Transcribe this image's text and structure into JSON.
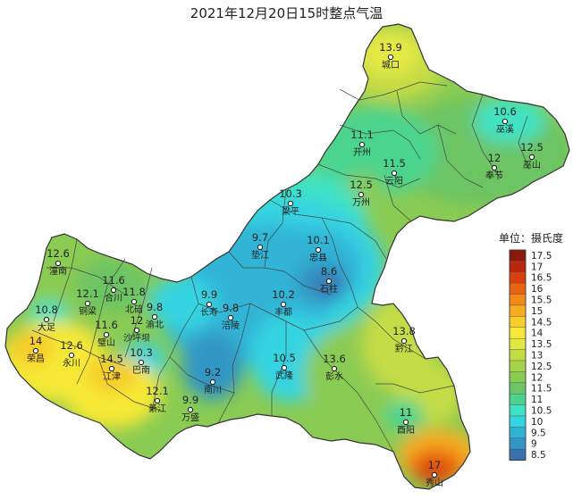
{
  "map": {
    "title": "2021年12月20日15时整点气温",
    "legend": {
      "title": "单位：摄氏度",
      "items": [
        {
          "label": "17.5",
          "color": "#8b1a0e"
        },
        {
          "label": "17",
          "color": "#b8260e"
        },
        {
          "label": "16.5",
          "color": "#d8410f"
        },
        {
          "label": "16",
          "color": "#ea6410"
        },
        {
          "label": "15.5",
          "color": "#f28a18"
        },
        {
          "label": "15",
          "color": "#f6ad22"
        },
        {
          "label": "14.5",
          "color": "#f7cc2c"
        },
        {
          "label": "14",
          "color": "#f6e836"
        },
        {
          "label": "13.5",
          "color": "#e4e844"
        },
        {
          "label": "13",
          "color": "#c4dc44"
        },
        {
          "label": "12.5",
          "color": "#a6d24c"
        },
        {
          "label": "12",
          "color": "#8acb53"
        },
        {
          "label": "11.5",
          "color": "#6cc464"
        },
        {
          "label": "11",
          "color": "#4cd48e"
        },
        {
          "label": "10.5",
          "color": "#3fe2c2"
        },
        {
          "label": "10",
          "color": "#34d4e2"
        },
        {
          "label": "9.5",
          "color": "#30b4d6"
        },
        {
          "label": "9",
          "color": "#3296c4"
        },
        {
          "label": "8.5",
          "color": "#3a6fb0"
        }
      ]
    },
    "stations": [
      {
        "name": "城口",
        "value": "13.9",
        "color": "#e4e844"
      },
      {
        "name": "巫溪",
        "value": "10.6",
        "color": "#3fe2c2"
      },
      {
        "name": "开州",
        "value": "11.1",
        "color": "#4cd48e"
      },
      {
        "name": "云阳",
        "value": "11.5",
        "color": "#6cc464"
      },
      {
        "name": "奉节",
        "value": "12",
        "color": "#8acb53"
      },
      {
        "name": "巫山",
        "value": "12.5",
        "color": "#a6d24c"
      },
      {
        "name": "万州",
        "value": "12.5",
        "color": "#a6d24c"
      },
      {
        "name": "梁平",
        "value": "10.3",
        "color": "#34d4e2"
      },
      {
        "name": "垫江",
        "value": "9.7",
        "color": "#30b4d6"
      },
      {
        "name": "忠县",
        "value": "10.1",
        "color": "#34d4e2"
      },
      {
        "name": "石柱",
        "value": "8.6",
        "color": "#3a6fb0"
      },
      {
        "name": "潼南",
        "value": "12.6",
        "color": "#a6d24c"
      },
      {
        "name": "合川",
        "value": "11.6",
        "color": "#6cc464"
      },
      {
        "name": "北碚",
        "value": "11.8",
        "color": "#6cc464"
      },
      {
        "name": "铜梁",
        "value": "12.1",
        "color": "#8acb53"
      },
      {
        "name": "大足",
        "value": "10.8",
        "color": "#3fe2c2"
      },
      {
        "name": "渝北",
        "value": "9.8",
        "color": "#30b4d6"
      },
      {
        "name": "长寿",
        "value": "9.9",
        "color": "#30b4d6"
      },
      {
        "name": "涪陵",
        "value": "9.8",
        "color": "#30b4d6"
      },
      {
        "name": "丰都",
        "value": "10.2",
        "color": "#34d4e2"
      },
      {
        "name": "璧山",
        "value": "11.6",
        "color": "#6cc464"
      },
      {
        "name": "沙坪坝",
        "value": "12",
        "color": "#8acb53"
      },
      {
        "name": "巴南",
        "value": "10.3",
        "color": "#34d4e2"
      },
      {
        "name": "荣昌",
        "value": "14",
        "color": "#f6e836"
      },
      {
        "name": "永川",
        "value": "12.6",
        "color": "#a6d24c"
      },
      {
        "name": "江津",
        "value": "14.5",
        "color": "#f7cc2c"
      },
      {
        "name": "綦江",
        "value": "12.1",
        "color": "#8acb53"
      },
      {
        "name": "南川",
        "value": "9.2",
        "color": "#3296c4"
      },
      {
        "name": "武隆",
        "value": "10.5",
        "color": "#3fe2c2"
      },
      {
        "name": "彭水",
        "value": "13.6",
        "color": "#e4e844"
      },
      {
        "name": "黔江",
        "value": "13.8",
        "color": "#e4e844"
      },
      {
        "name": "万盛",
        "value": "9.9",
        "color": "#30b4d6"
      },
      {
        "name": "酉阳",
        "value": "11",
        "color": "#4cd48e"
      },
      {
        "name": "秀山",
        "value": "17",
        "color": "#b8260e"
      }
    ]
  }
}
